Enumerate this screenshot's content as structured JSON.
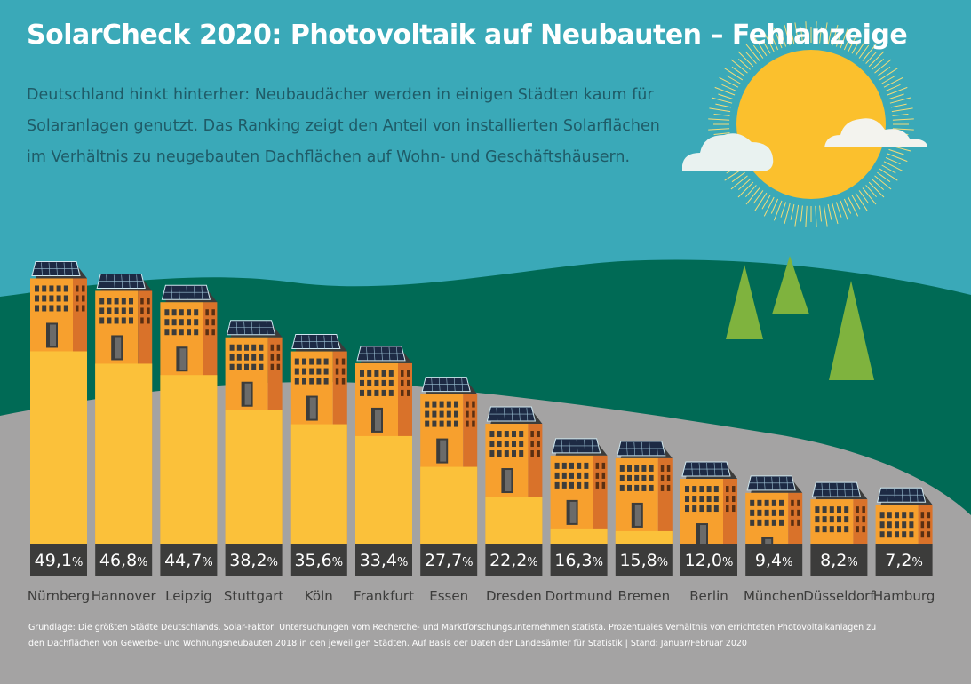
{
  "title": "SolarCheck 2020: Photovoltaik auf Neubauten – Fehlanzeige",
  "subtitle_lines": [
    "Deutschland hinkt hinterher: Neubaudächer werden in einigen Städten kaum für",
    "Solaranlagen genutzt. Das Ranking zeigt den Anteil von installierten Solarflächen",
    "im Verhältnis zu neugebauten Dachflächen auf Wohn- und Geschäftshäusern."
  ],
  "footer_lines": [
    "Grundlage: Die größten Städte Deutschlands. Solar-Faktor: Untersuchungen vom Recherche- und Marktforschungsunternehmen statista. Prozentuales Verhältnis von errichteten Photovoltaikanlagen zu",
    "den Dachflächen von Gewerbe- und Wohnungsneubauten 2018 in den jeweiligen Städten. Auf Basis der Daten der Landesämter für Statistik | Stand: Januar/Februar 2020"
  ],
  "colors": {
    "sky": "#3aa9b8",
    "hill": "#006a55",
    "ground": "#a4a3a3",
    "tree": "#7fb33e",
    "sun": "#fbc02d",
    "bar_fill": "#fbc13a",
    "building_front": "#f7a02e",
    "building_side": "#d9722a",
    "label_box": "#3c3c3b"
  },
  "chart_data": {
    "type": "bar",
    "categories": [
      "Nürnberg",
      "Hannover",
      "Leipzig",
      "Stuttgart",
      "Köln",
      "Frankfurt",
      "Essen",
      "Dresden",
      "Dortmund",
      "Bremen",
      "Berlin",
      "München",
      "Düsseldorf",
      "Hamburg"
    ],
    "values": [
      49.1,
      46.8,
      44.7,
      38.2,
      35.6,
      33.4,
      27.7,
      22.2,
      16.3,
      15.8,
      12.0,
      9.4,
      8.2,
      7.2
    ],
    "value_labels": [
      "49,1",
      "46,8",
      "44,7",
      "38,2",
      "35,6",
      "33,4",
      "27,7",
      "22,2",
      "16,3",
      "15,8",
      "12,0",
      "9,4",
      "8,2",
      "7,2"
    ],
    "unit": "%",
    "ylim": [
      0,
      50
    ],
    "grid": false
  }
}
